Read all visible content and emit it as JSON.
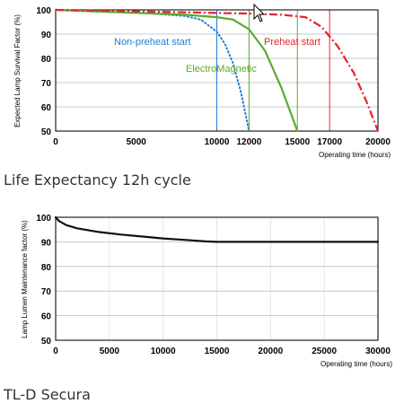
{
  "chart_data": [
    {
      "type": "line",
      "caption": "Life Expectancy 12h cycle",
      "xlabel": "Operating time (hours)",
      "ylabel": "Expected Lamp Survival Factor (%)",
      "xlim": [
        0,
        20000
      ],
      "ylim": [
        50,
        100
      ],
      "x_ticks": [
        0,
        5000,
        10000,
        12000,
        15000,
        17000,
        20000
      ],
      "y_ticks": [
        50,
        60,
        70,
        80,
        90,
        100
      ],
      "grid": true,
      "series": [
        {
          "name": "Non-preheat start",
          "color": "#1e7fd0",
          "style": "dotted",
          "x": [
            0,
            2000,
            4000,
            6000,
            8000,
            9000,
            10000,
            10500,
            11000,
            11500,
            12000
          ],
          "y": [
            100,
            99.5,
            99,
            98.5,
            97.5,
            96,
            91,
            86,
            78,
            66,
            50
          ]
        },
        {
          "name": "ElectroMagnetic",
          "color": "#5aaa2e",
          "style": "solid",
          "x": [
            0,
            4000,
            8000,
            10000,
            11000,
            12000,
            13000,
            14000,
            15000
          ],
          "y": [
            100,
            99,
            98,
            97,
            96,
            92,
            83,
            68,
            50
          ]
        },
        {
          "name": "Preheat start",
          "color": "#e5222a",
          "style": "dashdot",
          "x": [
            0,
            4000,
            8000,
            12000,
            14000,
            15500,
            16500,
            17500,
            18500,
            19300,
            20000
          ],
          "y": [
            100,
            99.5,
            99,
            98.5,
            98,
            97,
            93,
            85,
            74,
            62,
            50
          ]
        }
      ],
      "vertical_markers": [
        {
          "x": 10000,
          "color": "#1e7fd0"
        },
        {
          "x": 12000,
          "color": "#5aaa2e"
        },
        {
          "x": 15000,
          "color": "#5aaa2e"
        },
        {
          "x": 17000,
          "color": "#e5222a"
        }
      ]
    },
    {
      "type": "line",
      "caption": "TL-D Secura",
      "xlabel": "Operating time (hours)",
      "ylabel": "Lamp Lumen Maintenance factor (%)",
      "xlim": [
        0,
        30000
      ],
      "ylim": [
        50,
        100
      ],
      "x_ticks": [
        0,
        5000,
        10000,
        15000,
        20000,
        25000,
        30000
      ],
      "y_ticks": [
        50,
        60,
        70,
        80,
        90,
        100
      ],
      "grid": true,
      "series": [
        {
          "name": "",
          "color": "#111111",
          "style": "solid",
          "x": [
            0,
            300,
            1000,
            2000,
            4000,
            6000,
            8000,
            10000,
            12000,
            14000,
            15000,
            20000,
            25000,
            30000
          ],
          "y": [
            100,
            98.5,
            96.8,
            95.5,
            94,
            93,
            92.2,
            91.4,
            90.8,
            90.2,
            90,
            90,
            90,
            90
          ]
        }
      ]
    }
  ]
}
